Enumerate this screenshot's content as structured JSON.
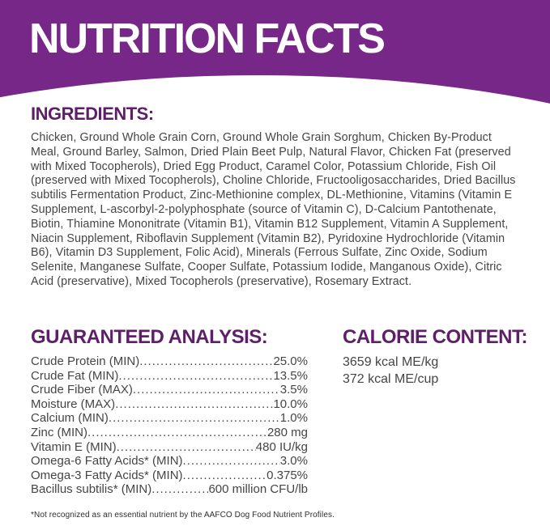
{
  "colors": {
    "banner_purple": "#762787",
    "heading_purple": "#5E1E69",
    "body_text": "#454545"
  },
  "banner": {
    "title": "NUTRITION FACTS"
  },
  "ingredients": {
    "heading": "INGREDIENTS:",
    "text": "Chicken, Ground Whole Grain Corn, Ground Whole Grain Sorghum, Chicken By-Product Meal, Ground Barley, Salmon, Dried Plain Beet Pulp, Natural Flavor, Chicken Fat (preserved with Mixed Tocopherols), Dried Egg Product, Caramel Color, Potassium Chloride, Fish Oil (preserved with Mixed Tocopherols), Choline Chloride, Fructooligosaccharides, Dried Bacillus subtilis Fermentation Product, Zinc-Methionine complex, DL-Methionine, Vitamins (Vitamin E Supplement, L-ascorbyl-2-polyphosphate (source of Vitamin C), D-Calcium Pantothenate, Biotin, Thiamine Mononitrate (Vitamin B1), Vitamin B12 Supplement, Vitamin A Supplement, Niacin Supplement, Riboflavin Supplement (Vitamin B2), Pyridoxine Hydrochloride (Vitamin B6), Vitamin D3 Supplement, Folic Acid), Minerals (Ferrous Sulfate, Zinc Oxide, Sodium Selenite, Manganese Sulfate, Cooper Sulfate, Potassium Iodide, Manganous Oxide), Citric Acid (preservative), Mixed Tocopherols (preservative), Rosemary Extract."
  },
  "guaranteed_analysis": {
    "heading": "GUARANTEED ANALYSIS:",
    "leader_dots": "................................................................................",
    "rows": [
      {
        "label": "Crude Protein (MIN)",
        "value": "25.0%"
      },
      {
        "label": "Crude Fat (MIN)",
        "value": "13.5%"
      },
      {
        "label": "Crude Fiber (MAX)",
        "value": "3.5%"
      },
      {
        "label": "Moisture (MAX)",
        "value": "10.0%"
      },
      {
        "label": "Calcium (MIN)",
        "value": "1.0%"
      },
      {
        "label": "Zinc (MIN)",
        "value": "280 mg"
      },
      {
        "label": "Vitamin E (MIN)",
        "value": "480 IU/kg"
      },
      {
        "label": "Omega-6 Fatty Acids* (MIN)",
        "value": "3.0%"
      },
      {
        "label": "Omega-3 Fatty Acids* (MIN)",
        "value": "0.375%"
      },
      {
        "label": "Bacillus subtilis* (MIN)",
        "value": "600 million CFU/lb"
      }
    ]
  },
  "calorie_content": {
    "heading": "CALORIE CONTENT:",
    "lines": [
      "3659 kcal ME/kg",
      "372 kcal ME/cup"
    ]
  },
  "footnote": "*Not recognized as an essential nutrient by the AAFCO Dog Food Nutrient Profiles."
}
